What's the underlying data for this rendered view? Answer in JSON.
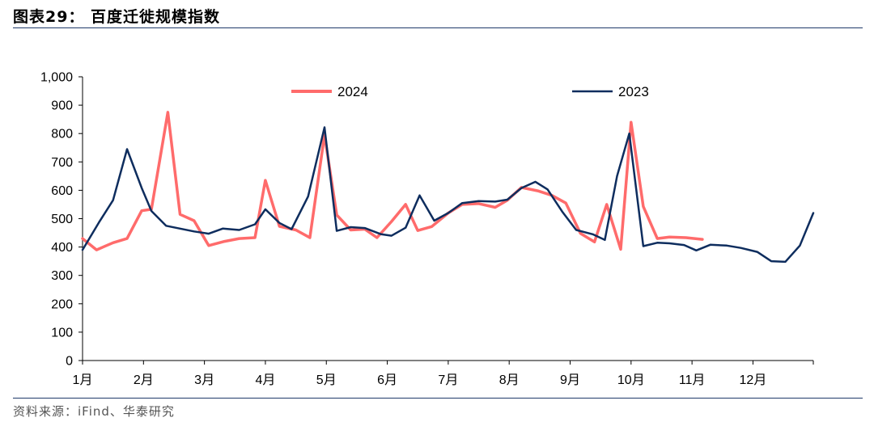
{
  "header": {
    "title": "图表29： 百度迁徙规模指数"
  },
  "footer": {
    "source": "资料来源：iFind、华泰研究"
  },
  "chart_data": {
    "type": "line",
    "title": "",
    "xlabel": "",
    "ylabel": "",
    "ylim": [
      0,
      1000
    ],
    "yticks": [
      "0",
      "100",
      "200",
      "300",
      "400",
      "500",
      "600",
      "700",
      "800",
      "900",
      "1,000"
    ],
    "xticks": [
      "1月",
      "2月",
      "3月",
      "4月",
      "5月",
      "6月",
      "7月",
      "8月",
      "9月",
      "10月",
      "11月",
      "12月"
    ],
    "x_domain_months": [
      1,
      12.99
    ],
    "grid": false,
    "legend": "top",
    "series": [
      {
        "name": "2024",
        "color": "#ff6b6b",
        "x": [
          1.0,
          1.23,
          1.5,
          1.73,
          1.97,
          2.13,
          2.4,
          2.6,
          2.83,
          3.07,
          3.33,
          3.57,
          3.83,
          4.0,
          4.23,
          4.5,
          4.73,
          4.97,
          5.17,
          5.4,
          5.63,
          5.83,
          6.07,
          6.3,
          6.5,
          6.73,
          7.0,
          7.23,
          7.5,
          7.77,
          7.97,
          8.2,
          8.47,
          8.7,
          8.93,
          9.17,
          9.4,
          9.6,
          9.83,
          10.0,
          10.2,
          10.43,
          10.63,
          10.9,
          11.17
        ],
        "values": [
          430,
          390,
          415,
          430,
          528,
          533,
          875,
          515,
          493,
          405,
          420,
          430,
          433,
          635,
          473,
          460,
          433,
          795,
          513,
          460,
          463,
          433,
          490,
          550,
          458,
          472,
          520,
          550,
          553,
          540,
          565,
          610,
          598,
          582,
          555,
          448,
          418,
          550,
          392,
          840,
          543,
          430,
          435,
          433,
          427
        ]
      },
      {
        "name": "2023",
        "color": "#0e2d5e",
        "x": [
          1.0,
          1.27,
          1.5,
          1.73,
          1.97,
          2.13,
          2.37,
          2.6,
          2.83,
          3.07,
          3.3,
          3.57,
          3.83,
          4.0,
          4.23,
          4.43,
          4.7,
          4.97,
          5.17,
          5.4,
          5.63,
          5.9,
          6.07,
          6.3,
          6.53,
          6.77,
          7.0,
          7.23,
          7.5,
          7.77,
          7.97,
          8.2,
          8.43,
          8.63,
          8.87,
          9.1,
          9.37,
          9.57,
          9.77,
          9.97,
          10.2,
          10.43,
          10.63,
          10.87,
          11.07,
          11.3,
          11.57,
          11.8,
          12.07,
          12.3,
          12.53,
          12.77,
          12.99
        ],
        "values": [
          390,
          487,
          565,
          745,
          608,
          527,
          475,
          465,
          455,
          447,
          465,
          460,
          480,
          533,
          485,
          463,
          578,
          822,
          457,
          470,
          467,
          445,
          440,
          468,
          582,
          493,
          520,
          555,
          562,
          560,
          567,
          608,
          630,
          603,
          525,
          460,
          445,
          425,
          650,
          800,
          403,
          415,
          413,
          407,
          388,
          408,
          405,
          397,
          383,
          350,
          348,
          405,
          520
        ]
      }
    ]
  }
}
